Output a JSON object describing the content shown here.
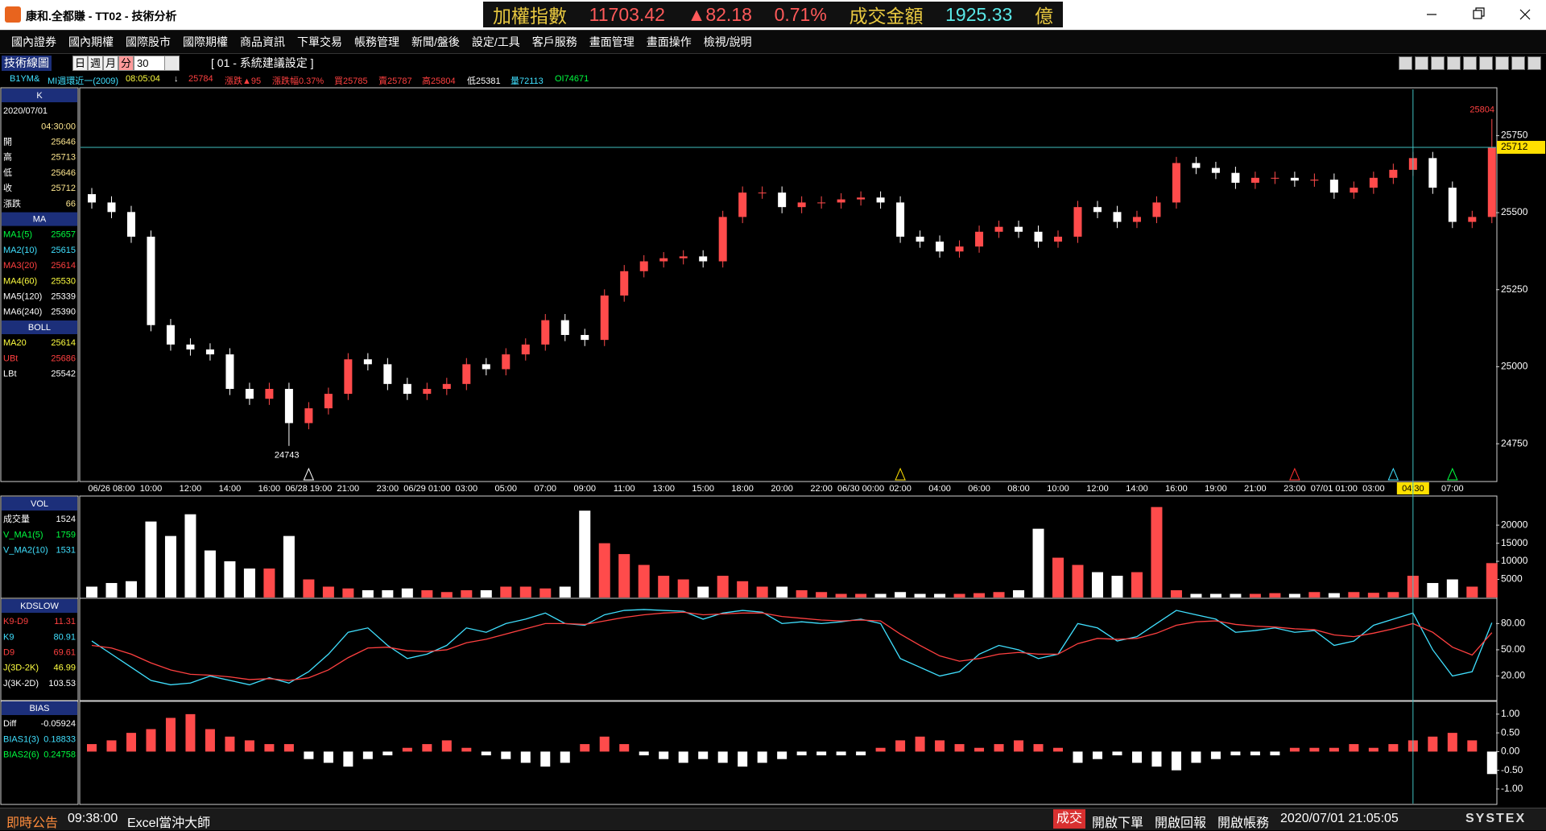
{
  "title_bar": {
    "title": "康和.全都賺 - TT02 - 技術分析"
  },
  "ticker": [
    {
      "text": "加權指數",
      "color": "#e8c840"
    },
    {
      "text": "11703.42",
      "color": "#ff5a5a"
    },
    {
      "text": "▲82.18",
      "color": "#ff5a5a"
    },
    {
      "text": "0.71%",
      "color": "#ff5a5a"
    },
    {
      "text": "成交金額",
      "color": "#e8c840"
    },
    {
      "text": "1925.33",
      "color": "#5ae8e8"
    },
    {
      "text": "億",
      "color": "#e8c840"
    }
  ],
  "menu": [
    "國內證券",
    "國內期權",
    "國際股市",
    "國際期權",
    "商品資訊",
    "下單交易",
    "帳務管理",
    "新聞/盤後",
    "設定/工具",
    "客戶服務",
    "畫面管理",
    "畫面操作",
    "檢視/說明"
  ],
  "toolbar": {
    "panel": "技術線圖",
    "periods": [
      "日",
      "週",
      "月",
      "分"
    ],
    "interval": "30",
    "setting": "[ 01 - 系統建議設定 ]"
  },
  "info_row": [
    {
      "text": "B1YM&",
      "color": "#40e0ff"
    },
    {
      "text": "MI週環近一(2009)",
      "color": "#40e0ff"
    },
    {
      "text": "08:05:04",
      "color": "#ffff40"
    },
    {
      "text": "↓",
      "color": "#ffffff"
    },
    {
      "text": "25784",
      "color": "#ff4040"
    },
    {
      "text": "漲跌▲95",
      "color": "#ff4040"
    },
    {
      "text": "漲跌幅0.37%",
      "color": "#ff4040"
    },
    {
      "text": "買25785",
      "color": "#ff4040"
    },
    {
      "text": "賣25787",
      "color": "#ff4040"
    },
    {
      "text": "高25804",
      "color": "#ff4040"
    },
    {
      "text": "低25381",
      "color": "#ffffff"
    },
    {
      "text": "量72113",
      "color": "#40e0ff"
    },
    {
      "text": "OI74671",
      "color": "#00ff40"
    }
  ],
  "side_panel": [
    {
      "title": "K",
      "rows": [
        {
          "label": "2020/07/01"
        },
        {
          "value": "04:30:00"
        },
        {
          "label": "開",
          "value": "25646"
        },
        {
          "label": "高",
          "value": "25713"
        },
        {
          "label": "低",
          "value": "25646"
        },
        {
          "label": "收",
          "value": "25712"
        },
        {
          "label": "漲跌",
          "value": "66"
        }
      ]
    },
    {
      "title": "MA",
      "rows": [
        {
          "label": "MA1(5)",
          "value": "25657",
          "color": "#00ff40"
        },
        {
          "label": "MA2(10)",
          "value": "25615",
          "color": "#40e0ff"
        },
        {
          "label": "MA3(20)",
          "value": "25614",
          "color": "#ff4040"
        },
        {
          "label": "MA4(60)",
          "value": "25530",
          "color": "#ffff40"
        },
        {
          "label": "MA5(120)",
          "value": "25339",
          "color": "#ffffff"
        },
        {
          "label": "MA6(240)",
          "value": "25390",
          "color": "#ffffff"
        }
      ]
    },
    {
      "title": "BOLL",
      "rows": [
        {
          "label": "MA20",
          "value": "25614",
          "color": "#ffff40"
        },
        {
          "label": "UBt",
          "value": "25686",
          "color": "#ff4040"
        },
        {
          "label": "LBt",
          "value": "25542",
          "color": "#ffffff"
        }
      ]
    },
    {
      "title": "VOL",
      "rows": [
        {
          "label": "成交量",
          "value": "1524",
          "color": "#ffffff"
        },
        {
          "label": "V_MA1(5)",
          "value": "1759",
          "color": "#00ff40"
        },
        {
          "label": "V_MA2(10)",
          "value": "1531",
          "color": "#40e0ff"
        }
      ]
    },
    {
      "title": "KDSLOW",
      "rows": [
        {
          "label": "K9-D9",
          "value": "11.31",
          "color": "#ff4040"
        },
        {
          "label": "K9",
          "value": "80.91",
          "color": "#40e0ff"
        },
        {
          "label": "D9",
          "value": "69.61",
          "color": "#ff4040"
        },
        {
          "label": "J(3D-2K)",
          "value": "46.99",
          "color": "#ffff40"
        },
        {
          "label": "J(3K-2D)",
          "value": "103.53",
          "color": "#ffffff"
        }
      ]
    },
    {
      "title": "BIAS",
      "rows": [
        {
          "label": "Diff",
          "value": "-0.05924",
          "color": "#ffffff"
        },
        {
          "label": "BIAS1(3)",
          "value": "0.18833",
          "color": "#40e0ff"
        },
        {
          "label": "BIAS2(6)",
          "value": "0.24758",
          "color": "#00ff40"
        }
      ]
    }
  ],
  "chart_data": [
    {
      "type": "candlestick",
      "up_color": "#ff4b4b",
      "down_color": "#ffffff",
      "categories": [
        null,
        "06/26 08:00",
        null,
        "10:00",
        null,
        "12:00",
        null,
        "14:00",
        null,
        "16:00",
        null,
        "06/28 19:00",
        null,
        "21:00",
        null,
        "23:00",
        null,
        "06/29 01:00",
        null,
        "03:00",
        null,
        "05:00",
        null,
        "07:00",
        null,
        "09:00",
        null,
        "11:00",
        null,
        "13:00",
        null,
        "15:00",
        null,
        "18:00",
        null,
        "20:00",
        null,
        "22:00",
        null,
        "06/30 00:00",
        null,
        "02:00",
        null,
        "04:00",
        null,
        "06:00",
        null,
        "08:00",
        null,
        "10:00",
        null,
        "12:00",
        null,
        "14:00",
        null,
        "16:00",
        null,
        "19:00",
        null,
        "21:00",
        null,
        "23:00",
        null,
        "07/01 01:00",
        null,
        "03:00",
        null,
        "04:30",
        null,
        "07:00",
        null,
        null
      ],
      "open": [
        25560,
        25533,
        25502,
        25422,
        25135,
        25072,
        25056,
        25040,
        24928,
        24896,
        24928,
        24817,
        24865,
        24912,
        25024,
        25008,
        24944,
        24912,
        24928,
        24944,
        25008,
        24992,
        25040,
        25072,
        25151,
        25103,
        25087,
        25231,
        25310,
        25342,
        25352,
        25358,
        25342,
        25486,
        25565,
        25565,
        25518,
        25533,
        25533,
        25543,
        25549,
        25533,
        25422,
        25406,
        25374,
        25390,
        25438,
        25454,
        25438,
        25406,
        25422,
        25518,
        25502,
        25470,
        25486,
        25533,
        25661,
        25645,
        25629,
        25597,
        25613,
        25613,
        25604,
        25607,
        25565,
        25581,
        25613,
        25639,
        25677,
        25581,
        25470,
        25486
      ],
      "high": [
        25580,
        25553,
        25522,
        25442,
        25155,
        25092,
        25076,
        25060,
        24948,
        24948,
        24948,
        24885,
        24932,
        25044,
        25044,
        25028,
        24964,
        24948,
        24964,
        25028,
        25028,
        25060,
        25092,
        25171,
        25171,
        25123,
        25251,
        25330,
        25362,
        25372,
        25378,
        25378,
        25506,
        25585,
        25585,
        25585,
        25553,
        25553,
        25563,
        25569,
        25569,
        25553,
        25442,
        25426,
        25410,
        25458,
        25474,
        25474,
        25458,
        25442,
        25538,
        25538,
        25522,
        25506,
        25553,
        25681,
        25681,
        25665,
        25649,
        25633,
        25633,
        25633,
        25627,
        25627,
        25601,
        25633,
        25659,
        25697,
        25697,
        25601,
        25506,
        25804
      ],
      "low": [
        25513,
        25482,
        25402,
        25115,
        25052,
        25036,
        25020,
        24908,
        24876,
        24876,
        24743,
        24797,
        24845,
        24892,
        24988,
        24924,
        24892,
        24892,
        24908,
        24924,
        24972,
        24972,
        25020,
        25052,
        25083,
        25067,
        25067,
        25211,
        25290,
        25322,
        25332,
        25322,
        25322,
        25466,
        25545,
        25498,
        25498,
        25513,
        25513,
        25523,
        25513,
        25402,
        25386,
        25354,
        25354,
        25370,
        25418,
        25418,
        25386,
        25386,
        25402,
        25482,
        25450,
        25450,
        25466,
        25513,
        25625,
        25609,
        25577,
        25577,
        25593,
        25584,
        25584,
        25545,
        25545,
        25561,
        25593,
        25619,
        25561,
        25450,
        25450,
        25466
      ],
      "close": [
        25533,
        25502,
        25422,
        25135,
        25072,
        25056,
        25040,
        24928,
        24896,
        24928,
        24817,
        24865,
        24912,
        25024,
        25008,
        24944,
        24912,
        24928,
        24944,
        25008,
        24992,
        25040,
        25072,
        25151,
        25103,
        25087,
        25231,
        25310,
        25342,
        25352,
        25358,
        25342,
        25486,
        25565,
        25565,
        25518,
        25533,
        25533,
        25543,
        25549,
        25533,
        25422,
        25406,
        25374,
        25390,
        25438,
        25454,
        25438,
        25406,
        25422,
        25518,
        25502,
        25470,
        25486,
        25533,
        25661,
        25645,
        25629,
        25597,
        25613,
        25613,
        25604,
        25607,
        25565,
        25581,
        25613,
        25639,
        25677,
        25581,
        25470,
        25486,
        25712
      ],
      "low_label": 24743,
      "high_label": 25804,
      "last_price": 25712,
      "ylim": [
        24630,
        25900
      ],
      "yticks": [
        24750,
        25000,
        25250,
        25500,
        25750
      ]
    },
    {
      "type": "bar",
      "values": [
        3000,
        4000,
        4500,
        21000,
        17000,
        23000,
        13000,
        10000,
        8000,
        8000,
        17000,
        5000,
        3000,
        2500,
        2000,
        2000,
        2500,
        2000,
        1500,
        2000,
        2000,
        3000,
        3000,
        2500,
        3000,
        24000,
        15000,
        12000,
        9000,
        6000,
        5000,
        3000,
        6000,
        4500,
        3000,
        3000,
        2000,
        1500,
        1000,
        1000,
        1000,
        1500,
        1000,
        1000,
        1000,
        1200,
        1500,
        2000,
        19000,
        11000,
        9000,
        7000,
        6000,
        7000,
        25000,
        2000,
        1000,
        1000,
        1000,
        1000,
        1200,
        1000,
        1500,
        1200,
        1500,
        1300,
        1500,
        6000,
        4000,
        5000,
        3000,
        9500
      ],
      "ylim": [
        0,
        27600
      ],
      "yticks": [
        5000,
        10000,
        15000,
        20000
      ]
    },
    {
      "type": "line",
      "series": [
        {
          "color": "#40e0ff",
          "values": [
            60,
            45,
            30,
            15,
            10,
            12,
            20,
            15,
            10,
            18,
            12,
            25,
            45,
            70,
            75,
            55,
            40,
            45,
            55,
            75,
            70,
            80,
            85,
            92,
            80,
            78,
            90,
            95,
            96,
            95,
            94,
            85,
            92,
            95,
            93,
            80,
            82,
            80,
            82,
            85,
            80,
            40,
            30,
            20,
            25,
            45,
            55,
            50,
            40,
            45,
            80,
            75,
            60,
            65,
            80,
            95,
            90,
            85,
            70,
            72,
            75,
            70,
            72,
            55,
            60,
            78,
            85,
            92,
            50,
            20,
            25,
            80.91
          ]
        },
        {
          "color": "#ff4040",
          "values": [
            55,
            52,
            45,
            35,
            27,
            22,
            21,
            19,
            16,
            17,
            15,
            18,
            27,
            41,
            52,
            53,
            49,
            48,
            50,
            58,
            62,
            68,
            74,
            80,
            80,
            79,
            83,
            87,
            90,
            92,
            93,
            90,
            91,
            92,
            92,
            88,
            86,
            84,
            83,
            84,
            83,
            68,
            55,
            43,
            37,
            40,
            45,
            47,
            45,
            45,
            57,
            63,
            62,
            63,
            69,
            78,
            82,
            83,
            79,
            77,
            76,
            74,
            73,
            67,
            65,
            69,
            74,
            80,
            70,
            53,
            44,
            69.61
          ]
        }
      ],
      "ylim": [
        -8,
        107
      ],
      "yticks": [
        {
          "value": 20,
          "label": "20.00"
        },
        {
          "value": 50,
          "label": "50.00"
        },
        {
          "value": 80,
          "label": "80.00"
        }
      ]
    },
    {
      "type": "bar",
      "up_color": "#ff4b4b",
      "down_color": "#ffffff",
      "values": [
        0.2,
        0.3,
        0.5,
        0.6,
        0.9,
        1.0,
        0.6,
        0.4,
        0.3,
        0.2,
        0.2,
        -0.2,
        -0.3,
        -0.4,
        -0.2,
        -0.1,
        0.1,
        0.2,
        0.3,
        0.1,
        -0.1,
        -0.2,
        -0.3,
        -0.4,
        -0.3,
        0.2,
        0.4,
        0.2,
        -0.1,
        -0.2,
        -0.3,
        -0.2,
        -0.3,
        -0.4,
        -0.3,
        -0.2,
        -0.1,
        -0.1,
        -0.1,
        -0.1,
        0.1,
        0.3,
        0.4,
        0.3,
        0.2,
        0.1,
        0.2,
        0.3,
        0.2,
        0.1,
        -0.3,
        -0.2,
        -0.1,
        -0.3,
        -0.4,
        -0.5,
        -0.3,
        -0.2,
        -0.1,
        -0.1,
        -0.1,
        0.1,
        0.1,
        0.1,
        0.2,
        0.1,
        0.2,
        0.3,
        0.4,
        0.5,
        0.3,
        -0.6
      ],
      "ylim": [
        -1.39,
        1.32
      ],
      "yticks": [
        {
          "value": 1,
          "label": "1.00"
        },
        {
          "value": 0.5,
          "label": "0.50"
        },
        {
          "value": 0,
          "label": "0.00"
        },
        {
          "value": -0.5,
          "label": "-0.50"
        },
        {
          "value": -1,
          "label": "-1.00"
        }
      ]
    }
  ],
  "status_bar": {
    "notice": "即時公告",
    "time": "09:38:00",
    "ad": "Excel當沖大師",
    "buttons": [
      "成交",
      "開啟下單",
      "開啟回報",
      "開啟帳務"
    ],
    "datetime": "2020/07/01 21:05:05",
    "brand": "SYSTEX"
  }
}
